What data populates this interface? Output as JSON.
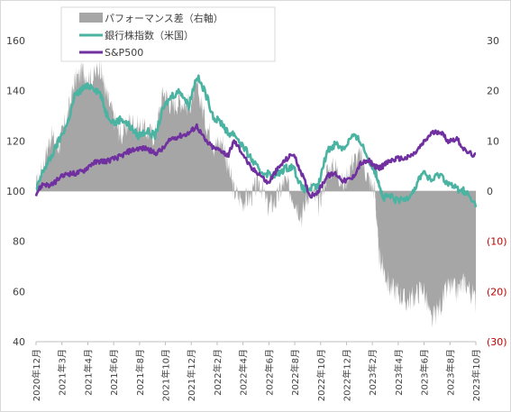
{
  "chart_data": {
    "type": "line+area",
    "title": "",
    "legend": {
      "placement": "top-left",
      "entries": [
        "パフォーマンス差（右軸）",
        "銀行株指数（米国）",
        "S&P500"
      ]
    },
    "x_tick_labels": [
      "2020年12月",
      "2021年3月",
      "2021年4月",
      "2021年6月",
      "2021年8月",
      "2021年10月",
      "2021年12月",
      "2022年2月",
      "2022年4月",
      "2022年6月",
      "2022年8月",
      "2022年10月",
      "2022年12月",
      "2023年2月",
      "2023年4月",
      "2023年6月",
      "2023年8月",
      "2023年10月"
    ],
    "y_left": {
      "ylim": [
        40,
        160
      ],
      "ticks": [
        40,
        60,
        80,
        100,
        120,
        140,
        160
      ],
      "tick_labels": [
        "40",
        "60",
        "80",
        "100",
        "120",
        "140",
        "160"
      ]
    },
    "y_right": {
      "ylim": [
        -30,
        30
      ],
      "ticks": [
        -30,
        -20,
        -10,
        0,
        10,
        20,
        30
      ],
      "tick_labels": [
        "(30)",
        "(20)",
        "(10)",
        "0",
        "10",
        "20",
        "30"
      ]
    },
    "x_range": [
      "2020-12-01",
      "2023-10-31"
    ],
    "series": [
      {
        "name": "パフォーマンス差（右軸）",
        "kind": "area",
        "axis": "right",
        "color": "#a6a6a6",
        "x": [
          "2020-12-01",
          "2020-12-18",
          "2021-01-05",
          "2021-01-25",
          "2021-02-15",
          "2021-03-05",
          "2021-03-25",
          "2021-04-15",
          "2021-05-05",
          "2021-05-20",
          "2021-06-10",
          "2021-06-25",
          "2021-07-15",
          "2021-08-05",
          "2021-08-25",
          "2021-09-15",
          "2021-10-05",
          "2021-10-25",
          "2021-11-15",
          "2021-12-05",
          "2021-12-25",
          "2022-01-15",
          "2022-02-05",
          "2022-02-25",
          "2022-03-10",
          "2022-03-25",
          "2022-04-15",
          "2022-05-05",
          "2022-05-25",
          "2022-06-15",
          "2022-07-05",
          "2022-07-25",
          "2022-08-15",
          "2022-09-05",
          "2022-09-25",
          "2022-10-15",
          "2022-11-05",
          "2022-11-25",
          "2022-12-15",
          "2023-01-05",
          "2023-01-25",
          "2023-02-15",
          "2023-03-01",
          "2023-03-10",
          "2023-03-20",
          "2023-04-05",
          "2023-04-25",
          "2023-05-15",
          "2023-06-05",
          "2023-06-25",
          "2023-07-15",
          "2023-08-05",
          "2023-08-25",
          "2023-09-15",
          "2023-10-05",
          "2023-10-31"
        ],
        "values": [
          1,
          5,
          11,
          9,
          15,
          22,
          24,
          22,
          25,
          19,
          14,
          11,
          14,
          13,
          12,
          11,
          20,
          17,
          18,
          17,
          21,
          14,
          9,
          10,
          5,
          0,
          -2,
          -1,
          2,
          -3,
          -2,
          2,
          -1,
          -5,
          1,
          -3,
          4,
          5,
          1,
          6,
          7,
          2,
          0,
          -13,
          -15,
          -19,
          -20,
          -22,
          -21,
          -19,
          -26,
          -23,
          -19,
          -20,
          -18,
          -22
        ]
      },
      {
        "name": "銀行株指数（米国）",
        "kind": "line",
        "axis": "left",
        "color": "#4bb3a1",
        "x": [
          "2020-12-01",
          "2020-12-18",
          "2021-01-05",
          "2021-01-25",
          "2021-02-15",
          "2021-03-05",
          "2021-03-25",
          "2021-04-15",
          "2021-05-05",
          "2021-05-20",
          "2021-06-10",
          "2021-06-25",
          "2021-07-15",
          "2021-08-05",
          "2021-08-25",
          "2021-09-15",
          "2021-10-05",
          "2021-10-25",
          "2021-11-15",
          "2021-12-05",
          "2021-12-25",
          "2022-01-15",
          "2022-02-05",
          "2022-02-25",
          "2022-03-10",
          "2022-03-25",
          "2022-04-15",
          "2022-05-05",
          "2022-05-25",
          "2022-06-15",
          "2022-07-05",
          "2022-07-25",
          "2022-08-15",
          "2022-09-05",
          "2022-09-25",
          "2022-10-15",
          "2022-11-05",
          "2022-11-25",
          "2022-12-15",
          "2023-01-05",
          "2023-01-25",
          "2023-02-15",
          "2023-03-01",
          "2023-03-10",
          "2023-03-20",
          "2023-04-05",
          "2023-04-25",
          "2023-05-15",
          "2023-06-05",
          "2023-06-25",
          "2023-07-15",
          "2023-08-05",
          "2023-08-25",
          "2023-09-15",
          "2023-10-05",
          "2023-10-31"
        ],
        "values": [
          100,
          108,
          113,
          120,
          127,
          138,
          141,
          142,
          139,
          131,
          127,
          129,
          126,
          122,
          124,
          122,
          133,
          138,
          140,
          134,
          146,
          139,
          129,
          127,
          123,
          123,
          118,
          113,
          108,
          107,
          106,
          109,
          110,
          101,
          101,
          102,
          116,
          119,
          117,
          122,
          120,
          112,
          108,
          104,
          97,
          98,
          96,
          97,
          101,
          108,
          104,
          107,
          103,
          101,
          100,
          94
        ]
      },
      {
        "name": "S&P500",
        "kind": "line",
        "axis": "left",
        "color": "#7030a0",
        "x": [
          "2020-12-01",
          "2020-12-18",
          "2021-01-05",
          "2021-01-25",
          "2021-02-15",
          "2021-03-05",
          "2021-03-25",
          "2021-04-15",
          "2021-05-05",
          "2021-05-20",
          "2021-06-10",
          "2021-06-25",
          "2021-07-15",
          "2021-08-05",
          "2021-08-25",
          "2021-09-15",
          "2021-10-05",
          "2021-10-25",
          "2021-11-15",
          "2021-12-05",
          "2021-12-25",
          "2022-01-15",
          "2022-02-05",
          "2022-02-25",
          "2022-03-10",
          "2022-03-25",
          "2022-04-15",
          "2022-05-05",
          "2022-05-25",
          "2022-06-15",
          "2022-07-05",
          "2022-07-25",
          "2022-08-15",
          "2022-09-05",
          "2022-09-25",
          "2022-10-15",
          "2022-11-05",
          "2022-11-25",
          "2022-12-15",
          "2023-01-05",
          "2023-01-25",
          "2023-02-15",
          "2023-03-01",
          "2023-03-10",
          "2023-03-20",
          "2023-04-05",
          "2023-04-25",
          "2023-05-15",
          "2023-06-05",
          "2023-06-25",
          "2023-07-15",
          "2023-08-05",
          "2023-08-25",
          "2023-09-15",
          "2023-10-05",
          "2023-10-31"
        ],
        "values": [
          99,
          103,
          102,
          105,
          107,
          107,
          108,
          111,
          112,
          112,
          113,
          114,
          116,
          117,
          117,
          115,
          117,
          121,
          122,
          123,
          126,
          120,
          117,
          116,
          114,
          120,
          115,
          109,
          107,
          103,
          108,
          112,
          115,
          107,
          98,
          100,
          106,
          107,
          104,
          105,
          111,
          112,
          110,
          109,
          110,
          112,
          113,
          113,
          115,
          119,
          123,
          124,
          120,
          121,
          116,
          114
        ]
      }
    ]
  }
}
